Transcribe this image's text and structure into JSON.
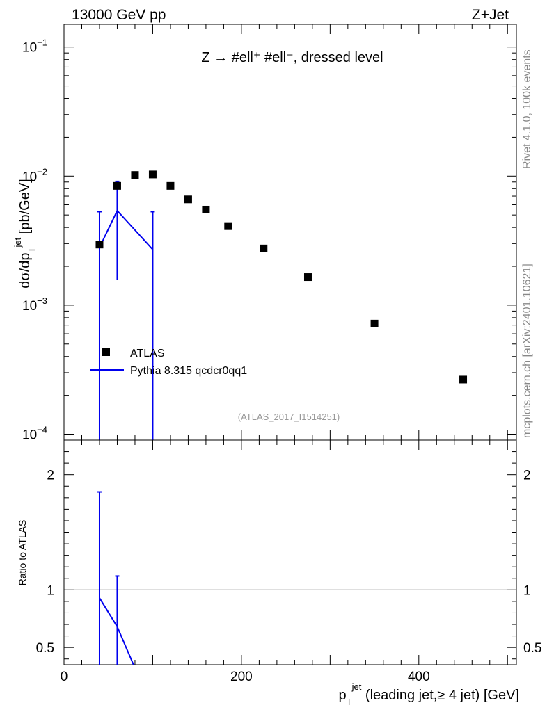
{
  "header": {
    "left": "13000 GeV pp",
    "right": "Z+Jet"
  },
  "side": {
    "rivet": "Rivet 4.1.0,  100k events",
    "mcplots": "mcplots.cern.ch [arXiv:2401.10621]"
  },
  "colors": {
    "data": "#000000",
    "mc": "#0000ee",
    "analysis_label": "#999999"
  },
  "chart_data": [
    {
      "type": "scatter",
      "panel": "main",
      "title": "Z → #ell⁺ #ell⁻, dressed level",
      "ylabel": "dσ/dp_T^jet [pb/GeV]",
      "ylabel_parts": {
        "a": "dσ/dp",
        "sub": "T",
        "sup": "jet",
        "b": " [pb/GeV]"
      },
      "yscale": "log",
      "ylim": [
        9e-05,
        0.15
      ],
      "xlim": [
        0,
        510
      ],
      "yticks": [
        {
          "value": 0.1,
          "base": "10",
          "exp": "−1"
        },
        {
          "value": 0.01,
          "base": "10",
          "exp": "−2"
        },
        {
          "value": 0.001,
          "base": "10",
          "exp": "−3"
        },
        {
          "value": 0.0001,
          "base": "10",
          "exp": "−4"
        }
      ],
      "analysis_label": "(ATLAS_2017_I1514251)",
      "legend": {
        "placement": "middle-left",
        "data_label": "ATLAS",
        "mc_label": "Pythia 8.315 qcdcr0qq1"
      },
      "series": [
        {
          "name": "ATLAS",
          "style": "marker",
          "x": [
            40,
            60,
            80,
            100,
            120,
            140,
            160,
            185,
            225,
            275,
            350,
            450
          ],
          "y": [
            0.00295,
            0.0084,
            0.0102,
            0.0103,
            0.0084,
            0.0066,
            0.0055,
            0.0041,
            0.00275,
            0.00165,
            0.00072,
            0.000265
          ]
        },
        {
          "name": "Pythia 8.315 qcdcr0qq1",
          "style": "line",
          "x": [
            40,
            60,
            100
          ],
          "y": [
            0.0028,
            0.0054,
            0.0027
          ],
          "err_low": [
            8e-05,
            0.00158,
            8e-05
          ],
          "err_high": [
            0.0053,
            0.0091,
            0.0053
          ]
        }
      ]
    },
    {
      "type": "line",
      "panel": "ratio",
      "ylabel": "Ratio to ATLAS",
      "xlabel": "p_T^jet (leading jet,≥ 4 jet) [GeV]",
      "xlabel_parts": {
        "a": "p",
        "sub": "T",
        "sup": "jet",
        "b": " (leading jet,≥ 4 jet) [GeV]"
      },
      "ylim": [
        0.35,
        2.3
      ],
      "xlim": [
        0,
        510
      ],
      "xticks": [
        {
          "value": 0,
          "label": "0"
        },
        {
          "value": 200,
          "label": "200"
        },
        {
          "value": 400,
          "label": "400"
        }
      ],
      "yticks": [
        {
          "value": 0.5,
          "label": "0.5"
        },
        {
          "value": 1,
          "label": "1"
        },
        {
          "value": 2,
          "label": "2"
        }
      ],
      "reference": 1,
      "series": [
        {
          "name": "Pythia 8.315 qcdcr0qq1",
          "x": [
            40,
            60,
            80
          ],
          "y": [
            0.93,
            0.68,
            0.32
          ],
          "err_low": [
            0.35,
            0.35,
            null
          ],
          "err_high": [
            1.85,
            1.12,
            null
          ]
        }
      ]
    }
  ]
}
